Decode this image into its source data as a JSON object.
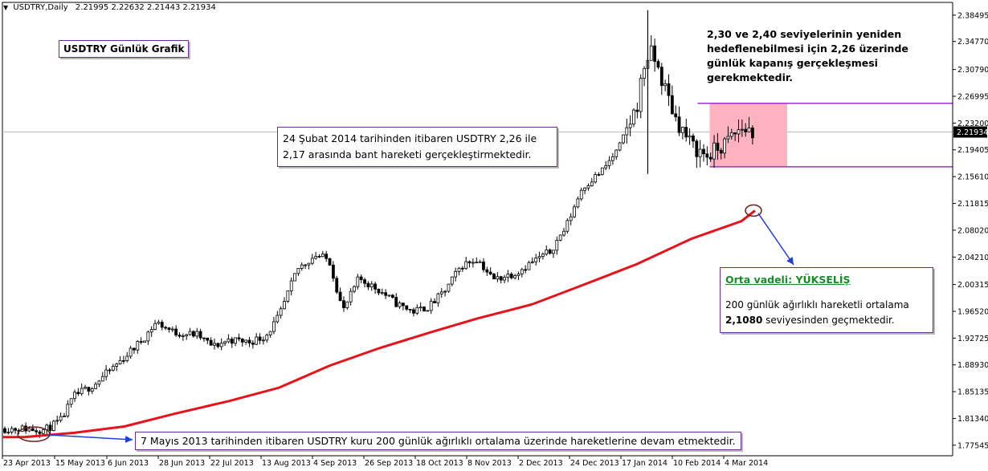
{
  "header": {
    "symbol": "USDTRY,Daily",
    "ohlc": "2.21995 2.22632 2.21443 2.21934"
  },
  "annotations": {
    "title": "USDTRY Günlük Grafik",
    "target_text": "2,30 ve 2,40 seviyelerinin yeniden hedeflenebilmesi için 2,26 üzerinde günlük kapanış gerçekleşmesi gerekmektedir.",
    "band_text": "24 Şubat 2014 tarihinden itibaren USDTRY 2,26 ile 2,17 arasında bant hareketi gerçekleştirmektedir.",
    "midterm_title": "Orta vadeli: YÜKSELİŞ",
    "midterm_text_pre": "200 günlük ağırlıklı hareketli ortalama",
    "midterm_value": "2,1080",
    "midterm_text_post": "seviyesinden geçmektedir.",
    "bottom_text": "7 Mayıs 2013 tarihinden itibaren USDTRY kuru 200 günlük ağırlıklı ortalama üzerinde hareketlerine devam etmektedir."
  },
  "colors": {
    "candle": "#000000",
    "ma_line": "#e8121b",
    "band_fill": "#ffb3c1",
    "band_line": "#9b30d0",
    "arrow": "#1f3fd6",
    "ellipse": "#6b1f1f",
    "price_line": "#c0c0c0"
  },
  "chart_data": {
    "type": "candlestick",
    "y_ticks": [
      "2.38495",
      "2.34770",
      "2.30790",
      "2.26995",
      "2.23200",
      "2.19405",
      "2.15610",
      "2.11815",
      "2.08020",
      "2.04210",
      "2.00315",
      "1.96520",
      "1.92725",
      "1.88930",
      "1.85135",
      "1.81340",
      "1.77545"
    ],
    "ylim": [
      1.7605,
      2.403
    ],
    "x_ticks": [
      "23 Apr 2013",
      "15 May 2013",
      "6 Jun 2013",
      "28 Jun 2013",
      "22 Jul 2013",
      "13 Aug 2013",
      "4 Sep 2013",
      "26 Sep 2013",
      "18 Oct 2013",
      "8 Nov 2013",
      "2 Dec 2013",
      "24 Dec 2013",
      "17 Jan 2014",
      "10 Feb 2014",
      "4 Mar 2014"
    ],
    "current_price_label": "2.21934",
    "current_price": 2.21934,
    "band": {
      "upper": 2.26,
      "lower": 2.17,
      "start": "2014-02-24"
    },
    "close_path": [
      {
        "x": "23 Apr 2013",
        "y": 1.799
      },
      {
        "x": "2 May 2013",
        "y": 1.797
      },
      {
        "x": "9 May 2013",
        "y": 1.81
      },
      {
        "x": "15 May 2013",
        "y": 1.845
      },
      {
        "x": "24 May 2013",
        "y": 1.862
      },
      {
        "x": "6 Jun 2013",
        "y": 1.9
      },
      {
        "x": "14 Jun 2013",
        "y": 1.925
      },
      {
        "x": "20 Jun 2013",
        "y": 1.95
      },
      {
        "x": "28 Jun 2013",
        "y": 1.935
      },
      {
        "x": "8 Jul 2013",
        "y": 1.932
      },
      {
        "x": "15 Jul 2013",
        "y": 1.915
      },
      {
        "x": "22 Jul 2013",
        "y": 1.925
      },
      {
        "x": "31 Jul 2013",
        "y": 1.922
      },
      {
        "x": "7 Aug 2013",
        "y": 1.93
      },
      {
        "x": "13 Aug 2013",
        "y": 1.958
      },
      {
        "x": "21 Aug 2013",
        "y": 2.025
      },
      {
        "x": "29 Aug 2013",
        "y": 2.045
      },
      {
        "x": "4 Sep 2013",
        "y": 2.038
      },
      {
        "x": "10 Sep 2013",
        "y": 1.965
      },
      {
        "x": "17 Sep 2013",
        "y": 2.012
      },
      {
        "x": "26 Sep 2013",
        "y": 1.995
      },
      {
        "x": "4 Oct 2013",
        "y": 1.975
      },
      {
        "x": "11 Oct 2013",
        "y": 1.965
      },
      {
        "x": "18 Oct 2013",
        "y": 1.972
      },
      {
        "x": "25 Oct 2013",
        "y": 1.995
      },
      {
        "x": "1 Nov 2013",
        "y": 2.03
      },
      {
        "x": "8 Nov 2013",
        "y": 2.04
      },
      {
        "x": "15 Nov 2013",
        "y": 2.01
      },
      {
        "x": "25 Nov 2013",
        "y": 2.02
      },
      {
        "x": "2 Dec 2013",
        "y": 2.035
      },
      {
        "x": "10 Dec 2013",
        "y": 2.05
      },
      {
        "x": "17 Dec 2013",
        "y": 2.085
      },
      {
        "x": "24 Dec 2013",
        "y": 2.14
      },
      {
        "x": "2 Jan 2014",
        "y": 2.165
      },
      {
        "x": "9 Jan 2014",
        "y": 2.195
      },
      {
        "x": "17 Jan 2014",
        "y": 2.255
      },
      {
        "x": "21 Jan 2014",
        "y": 2.325
      },
      {
        "x": "24 Jan 2014",
        "y": 2.33
      },
      {
        "x": "29 Jan 2014",
        "y": 2.285
      },
      {
        "x": "3 Feb 2014",
        "y": 2.24
      },
      {
        "x": "10 Feb 2014",
        "y": 2.2
      },
      {
        "x": "17 Feb 2014",
        "y": 2.185
      },
      {
        "x": "24 Feb 2014",
        "y": 2.2
      },
      {
        "x": "4 Mar 2014",
        "y": 2.225
      },
      {
        "x": "10 Mar 2014",
        "y": 2.219
      }
    ],
    "ma_200": [
      {
        "x": "23 Apr 2013",
        "y": 1.787
      },
      {
        "x": "15 May 2013",
        "y": 1.793
      },
      {
        "x": "6 Jun 2013",
        "y": 1.802
      },
      {
        "x": "28 Jun 2013",
        "y": 1.82
      },
      {
        "x": "22 Jul 2013",
        "y": 1.838
      },
      {
        "x": "13 Aug 2013",
        "y": 1.857
      },
      {
        "x": "4 Sep 2013",
        "y": 1.888
      },
      {
        "x": "26 Sep 2013",
        "y": 1.913
      },
      {
        "x": "18 Oct 2013",
        "y": 1.935
      },
      {
        "x": "8 Nov 2013",
        "y": 1.955
      },
      {
        "x": "2 Dec 2013",
        "y": 1.975
      },
      {
        "x": "24 Dec 2013",
        "y": 2.002
      },
      {
        "x": "17 Jan 2014",
        "y": 2.032
      },
      {
        "x": "10 Feb 2014",
        "y": 2.068
      },
      {
        "x": "4 Mar 2014",
        "y": 2.093
      },
      {
        "x": "10 Mar 2014",
        "y": 2.108
      }
    ]
  }
}
